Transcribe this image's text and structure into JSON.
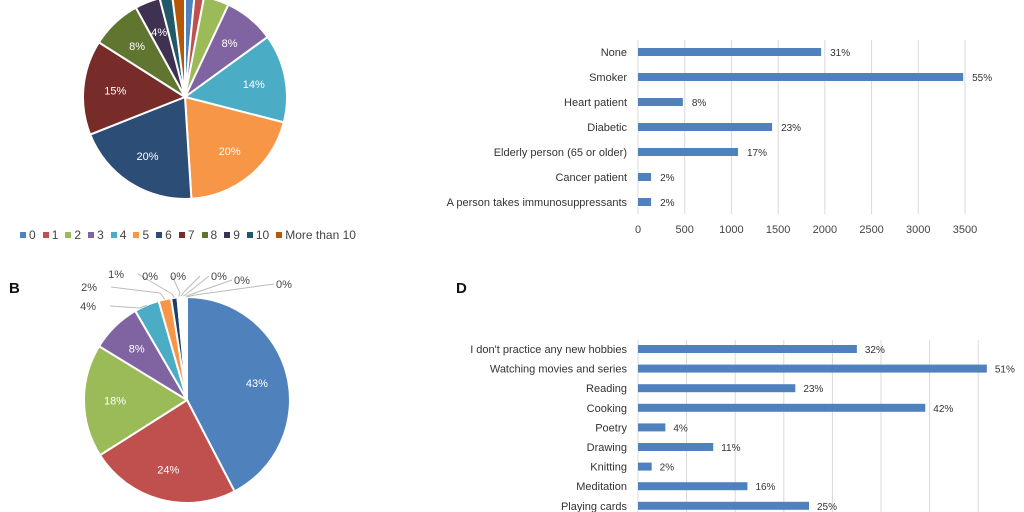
{
  "panels": {
    "b": "B",
    "d": "D"
  },
  "chart_data": [
    {
      "type": "pie",
      "id": "A",
      "legend_position": "bottom",
      "categories": [
        "0",
        "1",
        "2",
        "3",
        "4",
        "5",
        "6",
        "7",
        "8",
        "9",
        "10",
        "More than 10"
      ],
      "values": [
        1.5,
        1.5,
        4,
        8,
        14,
        20,
        20,
        15,
        8,
        4,
        2,
        2
      ],
      "labels": [
        "",
        "",
        "",
        "8%",
        "14%",
        "20%",
        "20%",
        "15%",
        "8%",
        "4%",
        "",
        ""
      ],
      "colors": [
        "#4f81bd",
        "#c0504d",
        "#9bbb59",
        "#8064a2",
        "#4bacc6",
        "#f79646",
        "#2c4d75",
        "#772c2a",
        "#5f7530",
        "#3f3151",
        "#215968",
        "#b65708"
      ]
    },
    {
      "type": "pie",
      "id": "B",
      "categories": [
        "0",
        "1",
        "2",
        "3",
        "4",
        "5",
        "6",
        "7",
        "8",
        "9",
        "10",
        "More than 10"
      ],
      "values": [
        43,
        24,
        18,
        8,
        4,
        2,
        1,
        0.3,
        0.3,
        0.3,
        0.3,
        0.3
      ],
      "labels": [
        "43%",
        "24%",
        "18%",
        "8%",
        "4%",
        "2%",
        "1%",
        "0%",
        "0%",
        "0%",
        "0%",
        "0%"
      ],
      "colors": [
        "#4f81bd",
        "#c0504d",
        "#9bbb59",
        "#8064a2",
        "#4bacc6",
        "#f79646",
        "#1f3d6b",
        "#772c2a",
        "#5f7530",
        "#3f3151",
        "#215968",
        "#b65708"
      ]
    },
    {
      "type": "bar",
      "id": "C",
      "orientation": "horizontal",
      "categories": [
        "None",
        "Smoker",
        "Heart patient",
        "Diabetic",
        "Elderly person (65 or older)",
        "Cancer patient",
        "A person takes immunosuppressants"
      ],
      "values": [
        1960,
        3480,
        480,
        1435,
        1070,
        140,
        140
      ],
      "data_labels": [
        "31%",
        "55%",
        "8%",
        "23%",
        "17%",
        "2%",
        "2%"
      ],
      "xlim": [
        0,
        3500
      ],
      "xticks": [
        "0",
        "500",
        "1000",
        "1500",
        "2000",
        "2500",
        "3000",
        "3500"
      ],
      "grid": true,
      "color": "#4f81bd"
    },
    {
      "type": "bar",
      "id": "D",
      "orientation": "horizontal",
      "categories": [
        "I don't practice any new hobbies",
        "Watching movies and series",
        "Reading",
        "Cooking",
        "Poetry",
        "Drawing",
        "Knitting",
        "Meditation",
        "Playing cards"
      ],
      "values": [
        32,
        51,
        23,
        42,
        4,
        11,
        2,
        16,
        25
      ],
      "data_labels": [
        "32%",
        "51%",
        "23%",
        "42%",
        "4%",
        "11%",
        "2%",
        "16%",
        "25%"
      ],
      "grid": true,
      "color": "#4f81bd"
    }
  ]
}
